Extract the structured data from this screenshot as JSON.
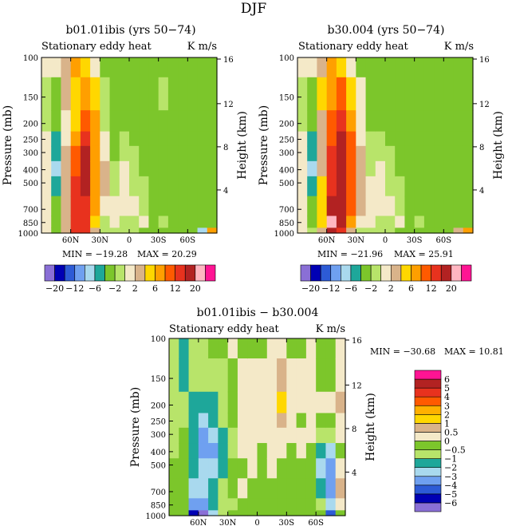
{
  "page": {
    "title": "DJF"
  },
  "palettes": {
    "top": [
      "#8a6fd6",
      "#0000b4",
      "#2d5bd6",
      "#6fa0f0",
      "#a9d9ee",
      "#1ea79a",
      "#7cc62b",
      "#b8e46a",
      "#f4e9c8",
      "#d9b38a",
      "#ffd700",
      "#ff9f00",
      "#ff5a00",
      "#e8321e",
      "#b22222",
      "#ffb6c1",
      "#ff1493"
    ],
    "diff": [
      "#8a6fd6",
      "#0000b4",
      "#2d5bd6",
      "#6fa0f0",
      "#a9d9ee",
      "#1ea79a",
      "#b8e46a",
      "#7cc62b",
      "#f4e9c8",
      "#d9b38a",
      "#ffd700",
      "#ffb000",
      "#ff5a00",
      "#e8321e",
      "#b22222",
      "#ff1493"
    ]
  },
  "chart_data": [
    {
      "type": "heatmap",
      "title": "b01.01ibis (yrs 50−74)",
      "subtitle_left": "Stationary eddy heat",
      "subtitle_right": "K m/s",
      "ylabel": "Pressure (mb)",
      "ylabel_right": "Height (km)",
      "x_ticks": [
        "60N",
        "30N",
        "0",
        "30S",
        "60S"
      ],
      "y_ticks": [
        "100",
        "150",
        "200",
        "250",
        "300",
        "400",
        "500",
        "700",
        "850",
        "1000"
      ],
      "y_ticks_right": [
        "16",
        "12",
        "8",
        "4"
      ],
      "min_label": "MIN = −19.28",
      "max_label": "MAX =  20.29",
      "colorbar_labels": [
        "−20",
        "−12",
        "−6",
        "−2",
        "2",
        "6",
        "12",
        "20"
      ],
      "columns": [
        {
          "lat": 85,
          "levels": [
            8,
            7,
            7,
            8,
            8,
            8,
            8,
            8,
            8,
            8
          ]
        },
        {
          "lat": 75,
          "levels": [
            8,
            6,
            6,
            5,
            5,
            4,
            5,
            6,
            6,
            6
          ]
        },
        {
          "lat": 65,
          "levels": [
            9,
            9,
            8,
            8,
            9,
            9,
            9,
            9,
            9,
            9
          ]
        },
        {
          "lat": 55,
          "levels": [
            11,
            10,
            10,
            11,
            12,
            12,
            13,
            13,
            13,
            13
          ]
        },
        {
          "lat": 45,
          "levels": [
            10,
            11,
            12,
            13,
            14,
            14,
            14,
            13,
            13,
            13
          ]
        },
        {
          "lat": 35,
          "levels": [
            8,
            10,
            11,
            11,
            11,
            11,
            11,
            11,
            10,
            9
          ]
        },
        {
          "lat": 25,
          "levels": [
            6,
            7,
            7,
            8,
            8,
            9,
            9,
            8,
            7,
            7
          ]
        },
        {
          "lat": 15,
          "levels": [
            6,
            6,
            6,
            6,
            6,
            7,
            7,
            8,
            8,
            7
          ]
        },
        {
          "lat": 5,
          "levels": [
            6,
            6,
            6,
            7,
            7,
            8,
            8,
            8,
            7,
            7
          ]
        },
        {
          "lat": -5,
          "levels": [
            6,
            6,
            6,
            6,
            7,
            7,
            7,
            8,
            7,
            7
          ]
        },
        {
          "lat": -15,
          "levels": [
            6,
            6,
            6,
            6,
            6,
            6,
            7,
            7,
            8,
            6
          ]
        },
        {
          "lat": -25,
          "levels": [
            6,
            6,
            6,
            6,
            6,
            6,
            6,
            6,
            6,
            6
          ]
        },
        {
          "lat": -35,
          "levels": [
            6,
            7,
            6,
            6,
            6,
            6,
            6,
            6,
            7,
            6
          ]
        },
        {
          "lat": -45,
          "levels": [
            6,
            6,
            6,
            6,
            6,
            6,
            6,
            6,
            6,
            6
          ]
        },
        {
          "lat": -55,
          "levels": [
            6,
            6,
            6,
            6,
            6,
            6,
            6,
            6,
            6,
            6
          ]
        },
        {
          "lat": -65,
          "levels": [
            6,
            6,
            6,
            6,
            6,
            6,
            6,
            6,
            6,
            6
          ]
        },
        {
          "lat": -75,
          "levels": [
            6,
            6,
            6,
            6,
            6,
            6,
            6,
            6,
            6,
            4
          ]
        },
        {
          "lat": -85,
          "levels": [
            6,
            6,
            6,
            6,
            6,
            6,
            6,
            6,
            6,
            11
          ]
        }
      ]
    },
    {
      "type": "heatmap",
      "title": "b30.004 (yrs 50−74)",
      "subtitle_left": "Stationary eddy heat",
      "subtitle_right": "K m/s",
      "ylabel": "Pressure (mb)",
      "ylabel_right": "Height (km)",
      "x_ticks": [
        "60N",
        "30N",
        "0",
        "30S",
        "60S"
      ],
      "y_ticks": [
        "100",
        "150",
        "200",
        "250",
        "300",
        "400",
        "500",
        "700",
        "850",
        "1000"
      ],
      "y_ticks_right": [
        "16",
        "12",
        "8",
        "4"
      ],
      "min_label": "MIN = −21.96",
      "max_label": "MAX =  25.91",
      "colorbar_labels": [
        "−20",
        "−12",
        "−6",
        "−2",
        "2",
        "6",
        "12",
        "20"
      ],
      "columns": [
        {
          "lat": 85,
          "levels": [
            8,
            7,
            7,
            8,
            8,
            8,
            8,
            8,
            8,
            8
          ]
        },
        {
          "lat": 75,
          "levels": [
            8,
            6,
            6,
            5,
            5,
            4,
            5,
            6,
            6,
            7
          ]
        },
        {
          "lat": 65,
          "levels": [
            9,
            10,
            9,
            9,
            9,
            9,
            10,
            10,
            10,
            9
          ]
        },
        {
          "lat": 55,
          "levels": [
            11,
            11,
            12,
            12,
            13,
            13,
            13,
            14,
            15,
            14
          ]
        },
        {
          "lat": 45,
          "levels": [
            10,
            12,
            13,
            14,
            14,
            14,
            14,
            14,
            14,
            13
          ]
        },
        {
          "lat": 35,
          "levels": [
            8,
            10,
            11,
            12,
            12,
            12,
            12,
            12,
            11,
            9
          ]
        },
        {
          "lat": 25,
          "levels": [
            6,
            8,
            8,
            8,
            9,
            9,
            9,
            9,
            8,
            7
          ]
        },
        {
          "lat": 15,
          "levels": [
            6,
            6,
            6,
            7,
            7,
            7,
            8,
            8,
            8,
            7
          ]
        },
        {
          "lat": 5,
          "levels": [
            6,
            6,
            6,
            7,
            7,
            8,
            8,
            8,
            7,
            7
          ]
        },
        {
          "lat": -5,
          "levels": [
            6,
            6,
            6,
            6,
            7,
            7,
            7,
            8,
            7,
            7
          ]
        },
        {
          "lat": -15,
          "levels": [
            6,
            6,
            6,
            6,
            6,
            6,
            7,
            7,
            8,
            6
          ]
        },
        {
          "lat": -25,
          "levels": [
            6,
            6,
            6,
            6,
            6,
            6,
            6,
            6,
            6,
            6
          ]
        },
        {
          "lat": -35,
          "levels": [
            6,
            6,
            6,
            6,
            6,
            6,
            6,
            6,
            7,
            6
          ]
        },
        {
          "lat": -45,
          "levels": [
            6,
            6,
            6,
            6,
            6,
            6,
            6,
            6,
            6,
            6
          ]
        },
        {
          "lat": -55,
          "levels": [
            6,
            6,
            6,
            6,
            6,
            6,
            6,
            6,
            6,
            6
          ]
        },
        {
          "lat": -65,
          "levels": [
            6,
            6,
            6,
            6,
            6,
            6,
            6,
            6,
            6,
            6
          ]
        },
        {
          "lat": -75,
          "levels": [
            6,
            6,
            6,
            6,
            6,
            6,
            6,
            6,
            6,
            9
          ]
        },
        {
          "lat": -85,
          "levels": [
            6,
            6,
            6,
            6,
            6,
            6,
            6,
            6,
            6,
            11
          ]
        }
      ]
    },
    {
      "type": "heatmap",
      "title": "b01.01ibis − b30.004",
      "subtitle_left": "Stationary eddy heat",
      "subtitle_right": "K m/s",
      "ylabel": "Pressure (mb)",
      "ylabel_right": "Height (km)",
      "x_ticks": [
        "60N",
        "30N",
        "0",
        "30S",
        "60S"
      ],
      "y_ticks": [
        "100",
        "150",
        "200",
        "250",
        "300",
        "400",
        "500",
        "700",
        "850",
        "1000"
      ],
      "y_ticks_right": [
        "16",
        "12",
        "8",
        "4"
      ],
      "min_label": "MIN = −30.68",
      "max_label": "MAX =  10.81",
      "colorbar_labels": [
        "−6",
        "−5",
        "−4",
        "−3",
        "−2",
        "−1",
        "−0.5",
        "0",
        "0.5",
        "1",
        "2",
        "3",
        "4",
        "5",
        "6"
      ],
      "columns": [
        {
          "lat": 85,
          "levels": [
            6,
            6,
            6,
            6,
            6,
            6,
            7,
            7,
            7,
            7
          ]
        },
        {
          "lat": 75,
          "levels": [
            5,
            5,
            6,
            6,
            7,
            7,
            7,
            7,
            7,
            7
          ]
        },
        {
          "lat": 65,
          "levels": [
            6,
            6,
            5,
            5,
            5,
            5,
            5,
            4,
            3,
            1
          ]
        },
        {
          "lat": 55,
          "levels": [
            6,
            6,
            5,
            4,
            3,
            3,
            4,
            4,
            3,
            0
          ]
        },
        {
          "lat": 45,
          "levels": [
            7,
            6,
            5,
            5,
            4,
            3,
            4,
            5,
            5,
            4
          ]
        },
        {
          "lat": 35,
          "levels": [
            7,
            6,
            6,
            6,
            5,
            5,
            5,
            6,
            6,
            6
          ]
        },
        {
          "lat": 25,
          "levels": [
            8,
            7,
            7,
            7,
            6,
            6,
            7,
            7,
            6,
            7
          ]
        },
        {
          "lat": 15,
          "levels": [
            7,
            8,
            8,
            8,
            8,
            8,
            7,
            8,
            7,
            7
          ]
        },
        {
          "lat": 5,
          "levels": [
            7,
            8,
            8,
            8,
            8,
            8,
            8,
            7,
            7,
            7
          ]
        },
        {
          "lat": -5,
          "levels": [
            7,
            8,
            8,
            8,
            8,
            7,
            7,
            7,
            7,
            7
          ]
        },
        {
          "lat": -15,
          "levels": [
            8,
            8,
            8,
            8,
            8,
            8,
            8,
            7,
            7,
            7
          ]
        },
        {
          "lat": -25,
          "levels": [
            8,
            9,
            10,
            9,
            8,
            8,
            7,
            7,
            7,
            7
          ]
        },
        {
          "lat": -35,
          "levels": [
            7,
            8,
            8,
            8,
            8,
            7,
            7,
            7,
            7,
            7
          ]
        },
        {
          "lat": -45,
          "levels": [
            7,
            8,
            8,
            7,
            8,
            8,
            7,
            7,
            7,
            7
          ]
        },
        {
          "lat": -55,
          "levels": [
            8,
            8,
            8,
            8,
            8,
            7,
            7,
            7,
            7,
            7
          ]
        },
        {
          "lat": -65,
          "levels": [
            7,
            7,
            8,
            7,
            6,
            5,
            4,
            5,
            6,
            7
          ]
        },
        {
          "lat": -75,
          "levels": [
            7,
            7,
            8,
            7,
            6,
            4,
            3,
            3,
            4,
            2
          ]
        },
        {
          "lat": -85,
          "levels": [
            8,
            8,
            9,
            8,
            8,
            7,
            8,
            9,
            8,
            7
          ]
        }
      ]
    }
  ]
}
